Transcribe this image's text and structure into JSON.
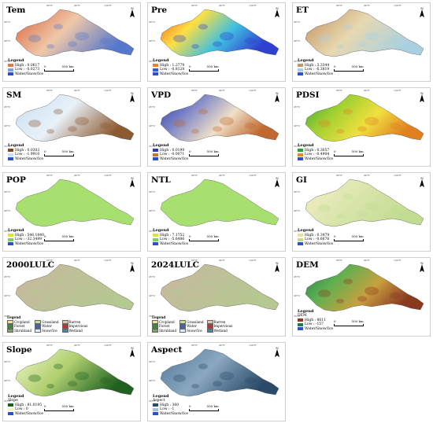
{
  "axis_labels": {
    "lon": [
      "80°E",
      "90°E",
      "100°E"
    ],
    "lat": [
      "45°N",
      "40°N",
      "35°N"
    ]
  },
  "north": "N",
  "scale": {
    "zero": "0",
    "dist": "500 km"
  },
  "legend_title": "Legend",
  "water_label": "Water/Snow/Ice",
  "panels": [
    {
      "id": "tem",
      "title": "Tem",
      "high": "High : 0.0617",
      "low": "Low : -0.0273",
      "colors": [
        "#d7603a",
        "#f0c8a8",
        "#5577cc"
      ],
      "hi_color": "#e07848",
      "lo_color": "#7fa0d8"
    },
    {
      "id": "pre",
      "title": "Pre",
      "high": "High : 1.2779",
      "low": "Low : -0.8128",
      "colors": [
        "#e85020",
        "#ffe040",
        "#40c0e0",
        "#3040d0"
      ],
      "hi_color": "#f08030",
      "lo_color": "#3060d0"
    },
    {
      "id": "et",
      "title": "ET",
      "high": "High : 3.3344",
      "low": "Low : -6.3819",
      "colors": [
        "#c08d5a",
        "#e8d8b0",
        "#a8d0e0"
      ],
      "hi_color": "#c4966a",
      "lo_color": "#a8cfe0"
    },
    {
      "id": "sm",
      "title": "SM",
      "high": "High : 0.0303",
      "low": "Low : -1.9910",
      "colors": [
        "#c8e0f0",
        "#e8f0f8",
        "#8c5a30"
      ],
      "hi_color": "#7a4a28",
      "lo_color": "#c8e0f0"
    },
    {
      "id": "vpd",
      "title": "VPD",
      "high": "High : 0.0199",
      "low": "Low : -0.0071",
      "colors": [
        "#2838a0",
        "#8088c8",
        "#f0e0c8",
        "#c06830"
      ],
      "hi_color": "#3040a8",
      "lo_color": "#c87438"
    },
    {
      "id": "pdsi",
      "title": "PDSI",
      "high": "High : 0.3057",
      "low": "Low : -0.4904",
      "colors": [
        "#30a040",
        "#a0d030",
        "#f0e040",
        "#e08020"
      ],
      "hi_color": "#2e9e3c",
      "lo_color": "#e08a28"
    },
    {
      "id": "pop",
      "title": "POP",
      "high": "High : 546.1840",
      "low": "Low : -32.3499",
      "colors": [
        "#a8e070"
      ],
      "hi_color": "#e0e040",
      "lo_color": "#80d060"
    },
    {
      "id": "ntl",
      "title": "NTL",
      "high": "High : 7.1752",
      "low": "Low : -5.6486",
      "colors": [
        "#a8e070"
      ],
      "hi_color": "#e0e040",
      "lo_color": "#80d060"
    },
    {
      "id": "gi",
      "title": "GI",
      "high": "High : 0.3479",
      "low": "Low : -0.6676",
      "colors": [
        "#f4efc8",
        "#c0dc90"
      ],
      "hi_color": "#f0e0a0",
      "lo_color": "#c0dc90"
    },
    {
      "id": "lulc2000",
      "title": "2000LULC",
      "colors": [
        "#c8b8a0",
        "#b4c890"
      ]
    },
    {
      "id": "lulc2024",
      "title": "2024LULC",
      "colors": [
        "#c8b8a0",
        "#b4c890"
      ]
    },
    {
      "id": "dem",
      "title": "DEM",
      "sub": "DEM",
      "high": "High : 8611",
      "low": "Low : -157",
      "colors": [
        "#1a8050",
        "#60b050",
        "#c8a040",
        "#8a3820"
      ],
      "hi_color": "#8a3a22",
      "lo_color": "#1a7a4c"
    },
    {
      "id": "slope",
      "title": "Slope",
      "sub": "Slope",
      "high": "High : 81.0195",
      "low": "Low : 0",
      "colors": [
        "#f0f4c8",
        "#b0d070",
        "#206020"
      ],
      "hi_color": "#1a6020",
      "lo_color": "#f0f4c8"
    },
    {
      "id": "aspect",
      "title": "Aspect",
      "sub": "Aspect",
      "high": "High : 360",
      "low": "Low : -1",
      "colors": [
        "#507898",
        "#8aa8c0",
        "#2a4a68"
      ],
      "hi_color": "#2a4a68",
      "lo_color": "#a8c0d0"
    }
  ],
  "lulc_legend": [
    {
      "label": "Cropland",
      "color": "#f0e0a0"
    },
    {
      "label": "Grassland",
      "color": "#c8dca0"
    },
    {
      "label": "Barren",
      "color": "#d8c8b0"
    },
    {
      "label": "Forest",
      "color": "#3a8a3a"
    },
    {
      "label": "Water",
      "color": "#4060c0"
    },
    {
      "label": "Impervious",
      "color": "#c03030"
    },
    {
      "label": "Shrubland",
      "color": "#80a060"
    },
    {
      "label": "Snow/Ice",
      "color": "#e0f0ff"
    },
    {
      "label": "Wetland",
      "color": "#5080a0"
    }
  ]
}
